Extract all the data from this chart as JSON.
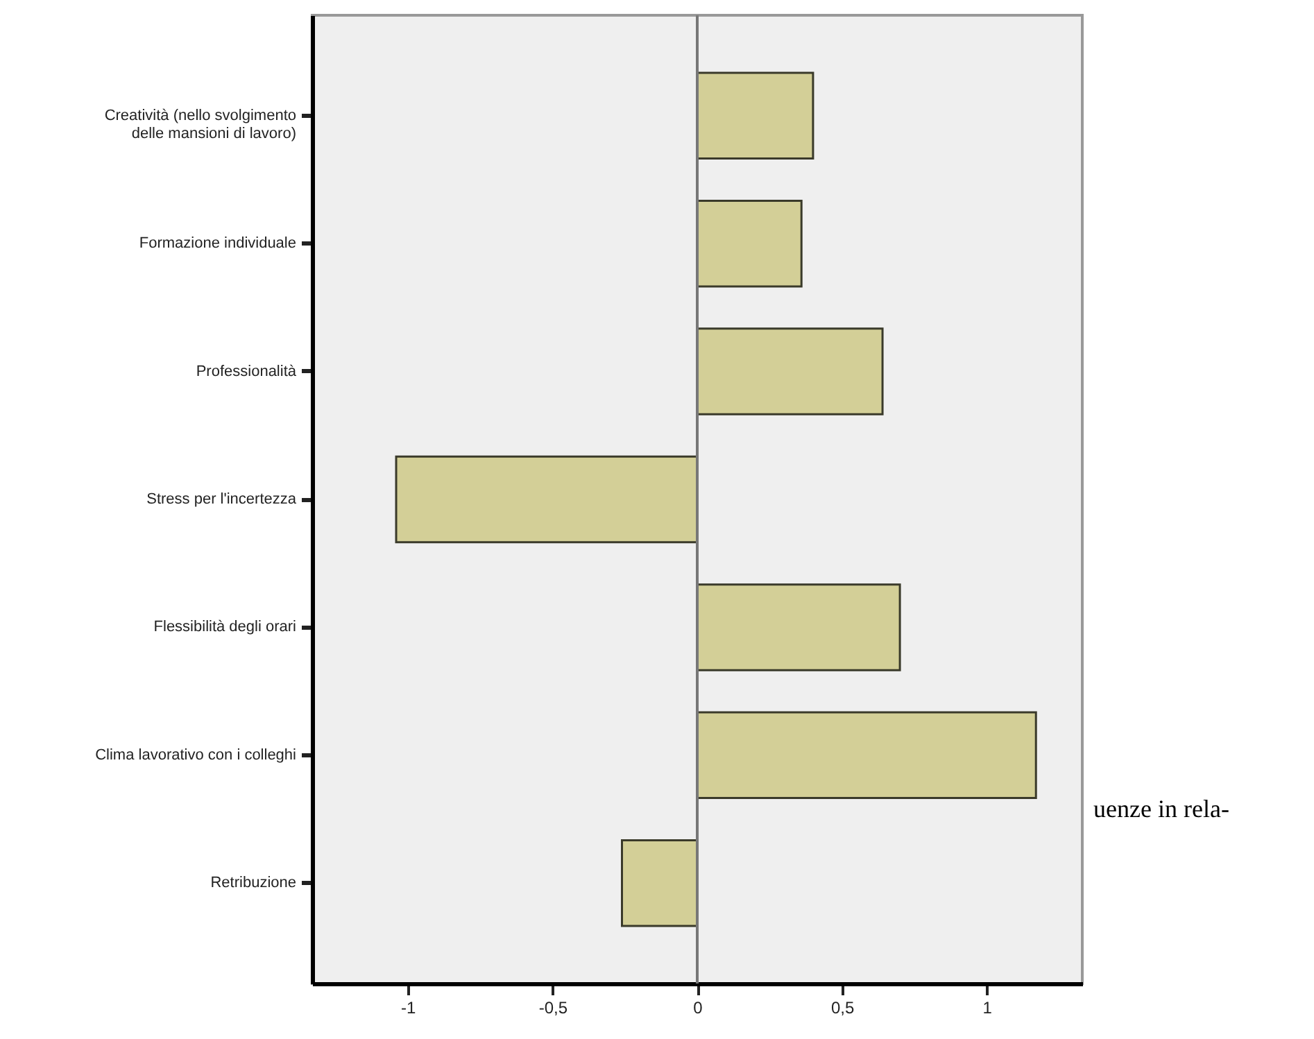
{
  "chart_data": {
    "type": "bar",
    "orientation": "horizontal",
    "categories": [
      "Creatività  (nello svolgimento\ndelle mansioni di lavoro)",
      "Formazione individuale",
      "Professionalità",
      "Stress per l'incertezza",
      "Flessibilità degli orari",
      "Clima lavorativo con i colleghi",
      "Retribuzione"
    ],
    "values": [
      0.4,
      0.36,
      0.64,
      -1.04,
      0.7,
      1.17,
      -0.26
    ],
    "color": "#d3cf97",
    "xlim": [
      -1.33,
      1.33
    ],
    "xticks": [
      {
        "value": -1,
        "label": "-1"
      },
      {
        "value": -0.5,
        "label": "-0,5"
      },
      {
        "value": 0,
        "label": "0"
      },
      {
        "value": 0.5,
        "label": "0,5"
      },
      {
        "value": 1,
        "label": "1"
      }
    ],
    "ref_lines": [
      {
        "axis": "x",
        "value": 0,
        "color": "#777777"
      }
    ],
    "grid": false,
    "annotations": [
      "uenze in rela-"
    ]
  }
}
